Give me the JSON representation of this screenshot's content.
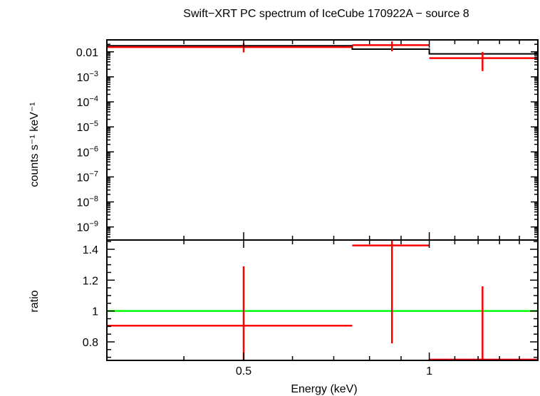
{
  "chart_data": [
    {
      "type": "line",
      "panel": "top",
      "title": "Swift−XRT PC spectrum of IceCube 170922A − source 8",
      "ylabel": "counts s⁻¹ keV⁻¹",
      "xlim": [
        0.3,
        1.5
      ],
      "ylim": [
        3e-10,
        0.03
      ],
      "yscale": "log",
      "xscale": "log",
      "yticks": [
        {
          "value": 0.01,
          "base": "0.01",
          "exp": ""
        },
        {
          "value": 0.001,
          "base": "10",
          "exp": "−3"
        },
        {
          "value": 0.0001,
          "base": "10",
          "exp": "−4"
        },
        {
          "value": 1e-05,
          "base": "10",
          "exp": "−5"
        },
        {
          "value": 1e-06,
          "base": "10",
          "exp": "−6"
        },
        {
          "value": 1e-07,
          "base": "10",
          "exp": "−7"
        },
        {
          "value": 1e-08,
          "base": "10",
          "exp": "−8"
        },
        {
          "value": 1e-09,
          "base": "10",
          "exp": "−9"
        }
      ],
      "series": [
        {
          "kind": "data",
          "color": "#ff0000",
          "points": [
            {
              "xlo": 0.3,
              "xhi": 0.75,
              "x": 0.5,
              "y": 0.0155,
              "ylo": 0.0095,
              "yhi": 0.022
            },
            {
              "xlo": 0.75,
              "xhi": 1.0,
              "x": 0.87,
              "y": 0.0185,
              "ylo": 0.0105,
              "yhi": 0.026
            },
            {
              "xlo": 1.0,
              "xhi": 1.5,
              "x": 1.22,
              "y": 0.0056,
              "ylo": 0.0017,
              "yhi": 0.0098
            }
          ]
        },
        {
          "kind": "model",
          "color": "#000000",
          "steps": [
            {
              "xlo": 0.3,
              "xhi": 0.75,
              "y": 0.0175
            },
            {
              "xlo": 0.75,
              "xhi": 1.0,
              "y": 0.0128
            },
            {
              "xlo": 1.0,
              "xhi": 1.5,
              "y": 0.0083
            }
          ]
        }
      ]
    },
    {
      "type": "line",
      "panel": "bottom",
      "xlabel": "Energy (keV)",
      "ylabel": "ratio",
      "xlim": [
        0.3,
        1.5
      ],
      "ylim": [
        0.68,
        1.46
      ],
      "xscale": "log",
      "xticks": [
        {
          "value": 0.5,
          "label": "0.5"
        },
        {
          "value": 1,
          "label": "1"
        }
      ],
      "yticks": [
        {
          "value": 0.8,
          "label": "0.8"
        },
        {
          "value": 1,
          "label": "1"
        },
        {
          "value": 1.2,
          "label": "1.2"
        },
        {
          "value": 1.4,
          "label": "1.4"
        }
      ],
      "reference_line": {
        "y": 1.0,
        "color": "#00ff00"
      },
      "series": [
        {
          "kind": "ratio",
          "color": "#ff0000",
          "points": [
            {
              "xlo": 0.3,
              "xhi": 0.75,
              "x": 0.5,
              "y": 0.905,
              "ylo": 0.68,
              "yhi": 1.29
            },
            {
              "xlo": 0.75,
              "xhi": 1.0,
              "x": 0.87,
              "y": 1.425,
              "ylo": 0.79,
              "yhi": 1.46
            },
            {
              "xlo": 1.0,
              "xhi": 1.5,
              "x": 1.22,
              "y": 0.685,
              "ylo": 0.68,
              "yhi": 1.16
            }
          ]
        }
      ]
    }
  ]
}
